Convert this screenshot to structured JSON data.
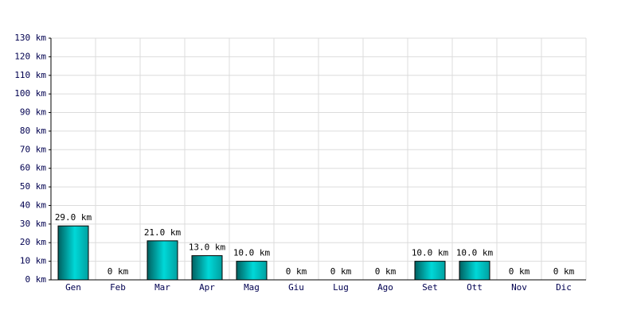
{
  "chart_data": {
    "type": "bar",
    "categories": [
      "Gen",
      "Feb",
      "Mar",
      "Apr",
      "Mag",
      "Giu",
      "Lug",
      "Ago",
      "Set",
      "Ott",
      "Nov",
      "Dic"
    ],
    "values": [
      29,
      0,
      21,
      13,
      10,
      0,
      0,
      0,
      10,
      10,
      0,
      0
    ],
    "value_labels": [
      "29.0 km",
      "0 km",
      "21.0 km",
      "13.0 km",
      "10.0 km",
      "0 km",
      "0 km",
      "0 km",
      "10.0 km",
      "10.0 km",
      "0 km",
      "0 km"
    ],
    "color": "#00d8d8",
    "ylim": [
      0,
      130
    ],
    "yticks": [
      {
        "value": 0,
        "label": "0 km"
      },
      {
        "value": 10,
        "label": "10 km"
      },
      {
        "value": 20,
        "label": "20 km"
      },
      {
        "value": 30,
        "label": "30 km"
      },
      {
        "value": 40,
        "label": "40 km"
      },
      {
        "value": 50,
        "label": "50 km"
      },
      {
        "value": 60,
        "label": "60 km"
      },
      {
        "value": 70,
        "label": "70 km"
      },
      {
        "value": 80,
        "label": "80 km"
      },
      {
        "value": 90,
        "label": "90 km"
      },
      {
        "value": 100,
        "label": "100 km"
      },
      {
        "value": 110,
        "label": "110 km"
      },
      {
        "value": 120,
        "label": "120 km"
      },
      {
        "value": 130,
        "label": "130 km"
      }
    ],
    "grid": true
  }
}
